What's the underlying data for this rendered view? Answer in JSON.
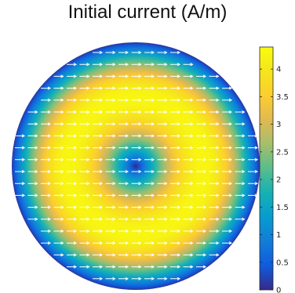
{
  "title": "Initial current (A/m)",
  "chart_data": {
    "type": "heatmap",
    "title": "Initial current (A/m)",
    "domain": "disk",
    "field": {
      "magnitude_peak": 4.3,
      "magnitude_center": 0.0,
      "magnitude_edge": 0.1,
      "peak_radius_fraction": 0.55,
      "arrow_direction": "+x"
    },
    "colorbar": {
      "colormap": "parula",
      "range": [
        0,
        4.4
      ],
      "ticks": [
        0,
        0.5,
        1,
        1.5,
        2,
        2.5,
        3,
        3.5,
        4
      ],
      "tick_labels": [
        "0",
        "0.5",
        "1",
        "1.5",
        "2",
        "2.5",
        "3",
        "3.5",
        "4"
      ],
      "placement": "right"
    },
    "arrow_color": "#ffffff"
  }
}
